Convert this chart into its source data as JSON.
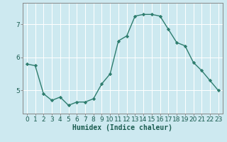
{
  "x": [
    0,
    1,
    2,
    3,
    4,
    5,
    6,
    7,
    8,
    9,
    10,
    11,
    12,
    13,
    14,
    15,
    16,
    17,
    18,
    19,
    20,
    21,
    22,
    23
  ],
  "y": [
    5.8,
    5.75,
    4.9,
    4.7,
    4.8,
    4.55,
    4.65,
    4.65,
    4.75,
    5.2,
    5.5,
    6.5,
    6.65,
    7.25,
    7.3,
    7.3,
    7.25,
    6.85,
    6.45,
    6.35,
    5.85,
    5.6,
    5.3,
    5.0
  ],
  "line_color": "#2e7d6e",
  "marker": "D",
  "marker_size": 2.2,
  "bg_color": "#cde9f0",
  "grid_color": "#ffffff",
  "xlabel": "Humidex (Indice chaleur)",
  "ylabel": "",
  "ylim": [
    4.3,
    7.65
  ],
  "yticks": [
    5,
    6,
    7
  ],
  "xlim": [
    -0.5,
    23.5
  ],
  "xticks": [
    0,
    1,
    2,
    3,
    4,
    5,
    6,
    7,
    8,
    9,
    10,
    11,
    12,
    13,
    14,
    15,
    16,
    17,
    18,
    19,
    20,
    21,
    22,
    23
  ],
  "xlabel_fontsize": 7,
  "tick_fontsize": 6.5,
  "linewidth": 1.0,
  "spine_color": "#888888"
}
